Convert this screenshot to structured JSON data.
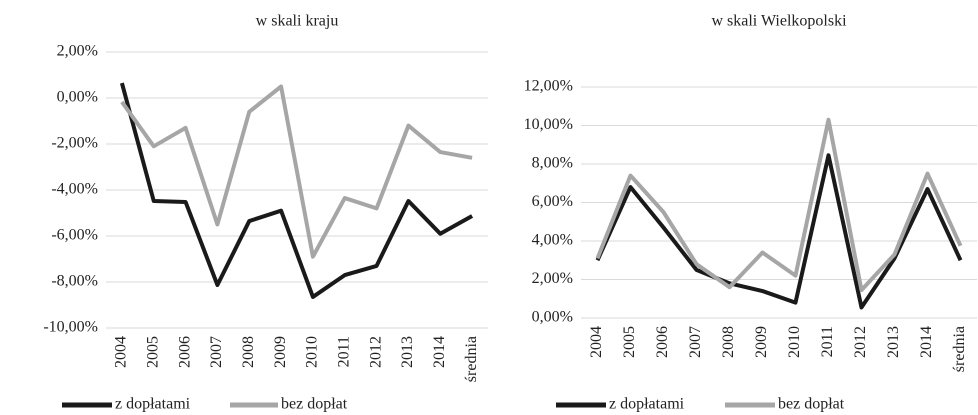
{
  "chart_data": [
    {
      "type": "line",
      "title": "w skali kraju",
      "categories": [
        "2004",
        "2005",
        "2006",
        "2007",
        "2008",
        "2009",
        "2010",
        "2011",
        "2012",
        "2013",
        "2014",
        "średnia"
      ],
      "series": [
        {
          "name": "z dopłatami",
          "color": "#1a1a1a",
          "values": [
            0.65,
            -4.48,
            -4.52,
            -8.13,
            -5.35,
            -4.9,
            -8.65,
            -7.7,
            -7.3,
            -4.48,
            -5.9,
            -5.13
          ]
        },
        {
          "name": "bez dopłat",
          "color": "#a6a6a6",
          "values": [
            -0.17,
            -2.1,
            -1.3,
            -5.5,
            -0.6,
            0.5,
            -6.9,
            -4.35,
            -4.8,
            -1.2,
            -2.35,
            -2.6
          ]
        }
      ],
      "ylim": [
        -10,
        2
      ],
      "yticks": [
        {
          "value": -10,
          "label": "-10,00%"
        },
        {
          "value": -8,
          "label": "-8,00%"
        },
        {
          "value": -6,
          "label": "-6,00%"
        },
        {
          "value": -4,
          "label": "-4,00%"
        },
        {
          "value": -2,
          "label": "-2,00%"
        },
        {
          "value": 0,
          "label": "0,00%"
        },
        {
          "value": 2,
          "label": "2,00%"
        }
      ],
      "grid": true,
      "legend": "bottom"
    },
    {
      "type": "line",
      "title": "w skali Wielkopolski",
      "categories": [
        "2004",
        "2005",
        "2006",
        "2007",
        "2008",
        "2009",
        "2010",
        "2011",
        "2012",
        "2013",
        "2014",
        "średnia"
      ],
      "series": [
        {
          "name": "z dopłatami",
          "color": "#1a1a1a",
          "values": [
            3.0,
            6.8,
            4.7,
            2.5,
            1.8,
            1.4,
            0.8,
            8.45,
            0.55,
            3.1,
            6.7,
            3.0
          ]
        },
        {
          "name": "bez dopłat",
          "color": "#a6a6a6",
          "values": [
            3.1,
            7.4,
            5.5,
            2.8,
            1.6,
            3.4,
            2.2,
            10.3,
            1.45,
            3.3,
            7.5,
            3.75
          ]
        }
      ],
      "ylim": [
        0,
        12
      ],
      "yticks": [
        {
          "value": 0,
          "label": "0,00%"
        },
        {
          "value": 2,
          "label": "2,00%"
        },
        {
          "value": 4,
          "label": "4,00%"
        },
        {
          "value": 6,
          "label": "6,00%"
        },
        {
          "value": 8,
          "label": "8,00%"
        },
        {
          "value": 10,
          "label": "10,00%"
        },
        {
          "value": 12,
          "label": "12,00%"
        }
      ],
      "grid": true,
      "legend": "bottom"
    }
  ]
}
